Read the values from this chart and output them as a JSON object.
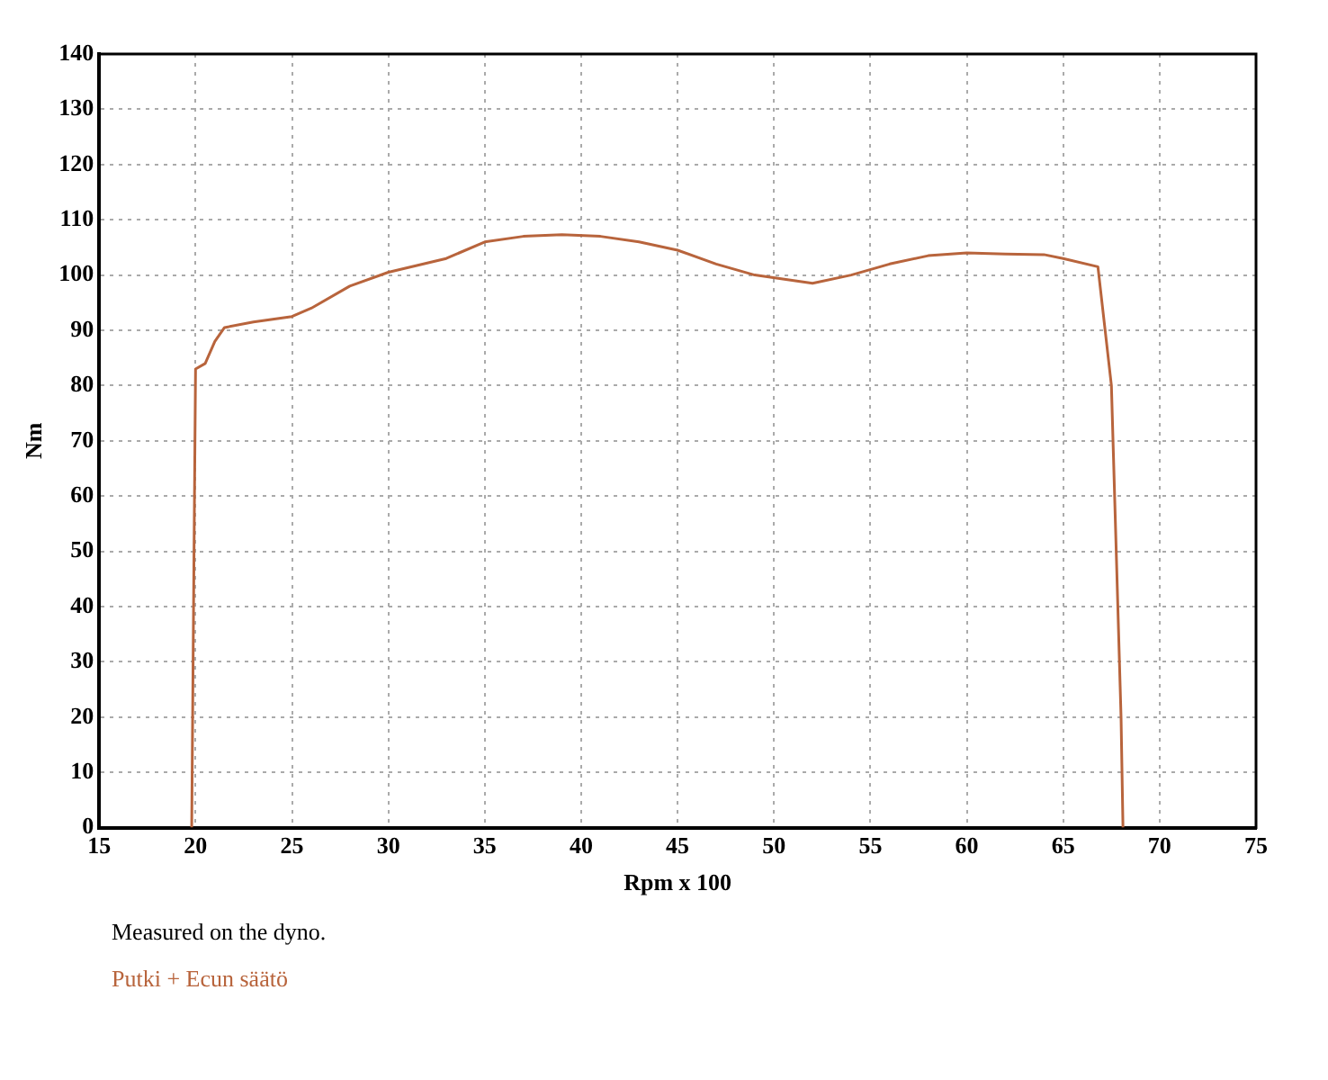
{
  "chart_data": {
    "type": "line",
    "xlabel": "Rpm x 100",
    "ylabel": "Nm",
    "x": [
      19.8,
      20.0,
      20.5,
      21,
      21.5,
      23,
      24,
      25,
      26,
      28,
      30,
      33,
      35,
      37,
      39,
      41,
      43,
      45,
      47,
      49,
      52,
      54,
      56,
      58,
      60,
      62,
      64,
      65,
      66.8,
      67.5,
      68.0,
      68.1
    ],
    "series": [
      {
        "color": "#b8643c",
        "values": [
          0,
          83,
          84,
          88,
          90.5,
          91.5,
          92,
          92.5,
          94,
          98,
          100.5,
          103,
          106,
          107,
          107.3,
          107,
          106,
          104.5,
          102,
          100,
          98.5,
          100,
          102,
          103.5,
          104,
          103.8,
          103.7,
          103,
          101.5,
          80,
          20,
          0
        ]
      }
    ],
    "xlim": [
      15,
      75
    ],
    "xticks": [
      15,
      20,
      25,
      30,
      35,
      40,
      45,
      50,
      55,
      60,
      65,
      70,
      75
    ],
    "ylim": [
      0,
      140
    ],
    "yticks": [
      0,
      10,
      20,
      30,
      40,
      50,
      60,
      70,
      80,
      90,
      100,
      110,
      120,
      130,
      140
    ],
    "grid": true,
    "legend": false,
    "marker": "none",
    "line_style": "solid",
    "annotations": [
      "Measured on the dyno.",
      "Putki + Ecun säätö"
    ]
  }
}
